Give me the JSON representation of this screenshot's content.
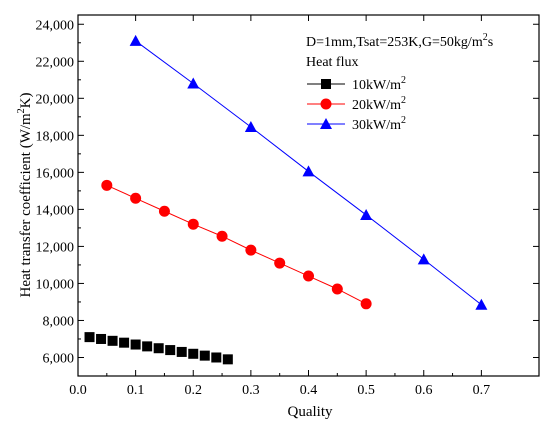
{
  "chart_data": {
    "type": "scatter",
    "title": "",
    "annotation": {
      "line1": "D=1mm,Tsat=253K,G=50kg/m",
      "line1_sup": "2",
      "line1_tail": "s",
      "legend_title": "Heat flux"
    },
    "xlabel": "Quality",
    "ylabel": "Heat transfer coefficient (W/m",
    "ylabel_sup": "2",
    "ylabel_tail": "K)",
    "xlim": [
      0.0,
      0.8
    ],
    "ylim": [
      5000,
      24500
    ],
    "x_ticks": [
      0.0,
      0.1,
      0.2,
      0.3,
      0.4,
      0.5,
      0.6,
      0.7
    ],
    "x_tick_labels": [
      "0.0",
      "0.1",
      "0.2",
      "0.3",
      "0.4",
      "0.5",
      "0.6",
      "0.7"
    ],
    "y_ticks": [
      6000,
      8000,
      10000,
      12000,
      14000,
      16000,
      18000,
      20000,
      22000,
      24000
    ],
    "y_tick_labels": [
      "6,000",
      "8,000",
      "10,000",
      "12,000",
      "14,000",
      "16,000",
      "18,000",
      "20,000",
      "22,000",
      "24,000"
    ],
    "legend_position": "top-right",
    "series": [
      {
        "name": "10kW/m",
        "name_sup": "2",
        "marker": "square",
        "color": "#000000",
        "line": false,
        "x": [
          0.02,
          0.04,
          0.06,
          0.08,
          0.1,
          0.12,
          0.14,
          0.16,
          0.18,
          0.2,
          0.22,
          0.24,
          0.26
        ],
        "y": [
          7100,
          7000,
          6900,
          6800,
          6700,
          6600,
          6500,
          6400,
          6300,
          6200,
          6100,
          6000,
          5900
        ]
      },
      {
        "name": "20kW/m",
        "name_sup": "2",
        "marker": "circle",
        "color": "#ff0000",
        "line": true,
        "x": [
          0.05,
          0.1,
          0.15,
          0.2,
          0.25,
          0.3,
          0.35,
          0.4,
          0.45,
          0.5
        ],
        "y": [
          15300,
          14600,
          13900,
          13200,
          12550,
          11800,
          11100,
          10400,
          9700,
          8900
        ]
      },
      {
        "name": "30kW/m",
        "name_sup": "2",
        "marker": "triangle",
        "color": "#0000ff",
        "line": true,
        "x": [
          0.1,
          0.2,
          0.3,
          0.4,
          0.5,
          0.6,
          0.7
        ],
        "y": [
          23100,
          20800,
          18450,
          16050,
          13700,
          11300,
          8850
        ]
      }
    ]
  }
}
